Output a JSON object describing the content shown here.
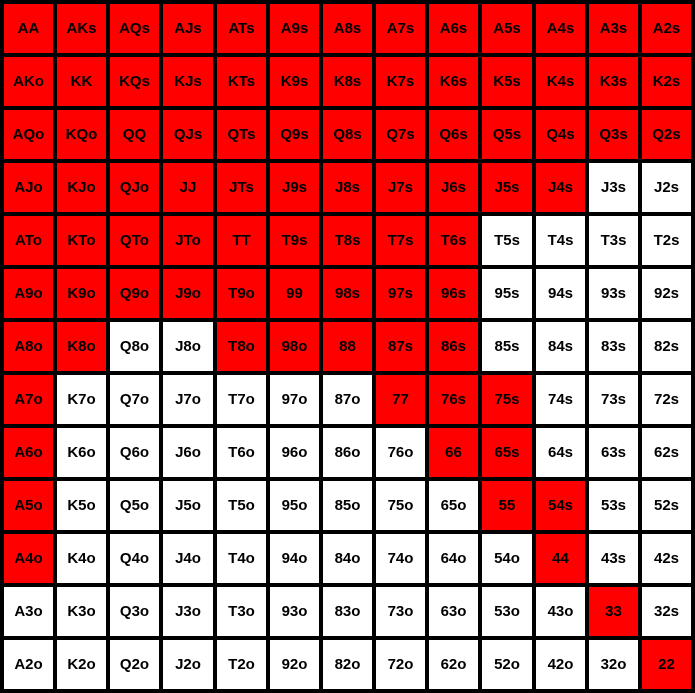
{
  "colors": {
    "selected": "#ff0000",
    "unselected": "#ffffff",
    "grid": "#000000"
  },
  "rows": [
    {
      "labels": [
        "AA",
        "AKs",
        "AQs",
        "AJs",
        "ATs",
        "A9s",
        "A8s",
        "A7s",
        "A6s",
        "A5s",
        "A4s",
        "A3s",
        "A2s"
      ],
      "selected": [
        1,
        1,
        1,
        1,
        1,
        1,
        1,
        1,
        1,
        1,
        1,
        1,
        1
      ]
    },
    {
      "labels": [
        "AKo",
        "KK",
        "KQs",
        "KJs",
        "KTs",
        "K9s",
        "K8s",
        "K7s",
        "K6s",
        "K5s",
        "K4s",
        "K3s",
        "K2s"
      ],
      "selected": [
        1,
        1,
        1,
        1,
        1,
        1,
        1,
        1,
        1,
        1,
        1,
        1,
        1
      ]
    },
    {
      "labels": [
        "AQo",
        "KQo",
        "QQ",
        "QJs",
        "QTs",
        "Q9s",
        "Q8s",
        "Q7s",
        "Q6s",
        "Q5s",
        "Q4s",
        "Q3s",
        "Q2s"
      ],
      "selected": [
        1,
        1,
        1,
        1,
        1,
        1,
        1,
        1,
        1,
        1,
        1,
        1,
        1
      ]
    },
    {
      "labels": [
        "AJo",
        "KJo",
        "QJo",
        "JJ",
        "JTs",
        "J9s",
        "J8s",
        "J7s",
        "J6s",
        "J5s",
        "J4s",
        "J3s",
        "J2s"
      ],
      "selected": [
        1,
        1,
        1,
        1,
        1,
        1,
        1,
        1,
        1,
        1,
        1,
        0,
        0
      ]
    },
    {
      "labels": [
        "ATo",
        "KTo",
        "QTo",
        "JTo",
        "TT",
        "T9s",
        "T8s",
        "T7s",
        "T6s",
        "T5s",
        "T4s",
        "T3s",
        "T2s"
      ],
      "selected": [
        1,
        1,
        1,
        1,
        1,
        1,
        1,
        1,
        1,
        0,
        0,
        0,
        0
      ]
    },
    {
      "labels": [
        "A9o",
        "K9o",
        "Q9o",
        "J9o",
        "T9o",
        "99",
        "98s",
        "97s",
        "96s",
        "95s",
        "94s",
        "93s",
        "92s"
      ],
      "selected": [
        1,
        1,
        1,
        1,
        1,
        1,
        1,
        1,
        1,
        0,
        0,
        0,
        0
      ]
    },
    {
      "labels": [
        "A8o",
        "K8o",
        "Q8o",
        "J8o",
        "T8o",
        "98o",
        "88",
        "87s",
        "86s",
        "85s",
        "84s",
        "83s",
        "82s"
      ],
      "selected": [
        1,
        1,
        0,
        0,
        1,
        1,
        1,
        1,
        1,
        0,
        0,
        0,
        0
      ]
    },
    {
      "labels": [
        "A7o",
        "K7o",
        "Q7o",
        "J7o",
        "T7o",
        "97o",
        "87o",
        "77",
        "76s",
        "75s",
        "74s",
        "73s",
        "72s"
      ],
      "selected": [
        1,
        0,
        0,
        0,
        0,
        0,
        0,
        1,
        1,
        1,
        0,
        0,
        0
      ]
    },
    {
      "labels": [
        "A6o",
        "K6o",
        "Q6o",
        "J6o",
        "T6o",
        "96o",
        "86o",
        "76o",
        "66",
        "65s",
        "64s",
        "63s",
        "62s"
      ],
      "selected": [
        1,
        0,
        0,
        0,
        0,
        0,
        0,
        0,
        1,
        1,
        0,
        0,
        0
      ]
    },
    {
      "labels": [
        "A5o",
        "K5o",
        "Q5o",
        "J5o",
        "T5o",
        "95o",
        "85o",
        "75o",
        "65o",
        "55",
        "54s",
        "53s",
        "52s"
      ],
      "selected": [
        1,
        0,
        0,
        0,
        0,
        0,
        0,
        0,
        0,
        1,
        1,
        0,
        0
      ]
    },
    {
      "labels": [
        "A4o",
        "K4o",
        "Q4o",
        "J4o",
        "T4o",
        "94o",
        "84o",
        "74o",
        "64o",
        "54o",
        "44",
        "43s",
        "42s"
      ],
      "selected": [
        1,
        0,
        0,
        0,
        0,
        0,
        0,
        0,
        0,
        0,
        1,
        0,
        0
      ]
    },
    {
      "labels": [
        "A3o",
        "K3o",
        "Q3o",
        "J3o",
        "T3o",
        "93o",
        "83o",
        "73o",
        "63o",
        "53o",
        "43o",
        "33",
        "32s"
      ],
      "selected": [
        0,
        0,
        0,
        0,
        0,
        0,
        0,
        0,
        0,
        0,
        0,
        1,
        0
      ]
    },
    {
      "labels": [
        "A2o",
        "K2o",
        "Q2o",
        "J2o",
        "T2o",
        "92o",
        "82o",
        "72o",
        "62o",
        "52o",
        "42o",
        "32o",
        "22"
      ],
      "selected": [
        0,
        0,
        0,
        0,
        0,
        0,
        0,
        0,
        0,
        0,
        0,
        0,
        1
      ]
    }
  ]
}
